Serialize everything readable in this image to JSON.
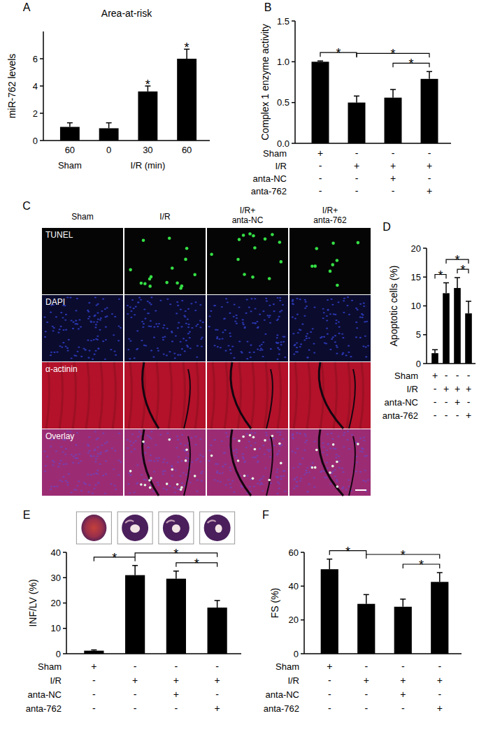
{
  "chart_data": [
    {
      "type": "bar",
      "panel": "A",
      "title": "Area-at-risk",
      "y_label": "miR-762 levels",
      "categories": [
        "60",
        "0",
        "30",
        "60"
      ],
      "values": [
        1.0,
        0.9,
        3.6,
        6.0
      ],
      "errors": [
        0.3,
        0.4,
        0.4,
        0.7
      ],
      "color": "#000000",
      "ylim": [
        0,
        8
      ],
      "yticks": [
        0,
        2,
        4,
        6
      ],
      "x_groups": [
        {
          "label": "Sham",
          "start": 0,
          "end": 0
        },
        {
          "label": "I/R (min)",
          "start": 1,
          "end": 3
        }
      ],
      "annotations": [
        {
          "index": 2,
          "text": "*"
        },
        {
          "index": 3,
          "text": "*"
        }
      ]
    },
    {
      "type": "bar",
      "panel": "B",
      "y_label": "Complex 1 enzyme activity",
      "categories": [
        null,
        null,
        null,
        null
      ],
      "values": [
        1.0,
        0.5,
        0.56,
        0.79
      ],
      "errors": [
        0.01,
        0.08,
        0.1,
        0.09
      ],
      "color": "#000000",
      "ylim": [
        0,
        1.5
      ],
      "yticks": [
        {
          "value": 0,
          "label": "0.0"
        },
        0.5,
        {
          "value": 1,
          "label": "1.0"
        },
        1.5
      ],
      "conditions": [
        {
          "name": "Sham",
          "signs": [
            "+",
            "-",
            "-",
            "-"
          ]
        },
        {
          "name": "I/R",
          "signs": [
            "-",
            "+",
            "+",
            "+"
          ]
        },
        {
          "name": "anta-NC",
          "signs": [
            "-",
            "-",
            "+",
            "-"
          ]
        },
        {
          "name": "anta-762",
          "signs": [
            "-",
            "-",
            "-",
            "+"
          ]
        }
      ],
      "significance": [
        {
          "from": 0,
          "to": 1,
          "label": "*"
        },
        {
          "from": 1,
          "to": 3,
          "label": "*"
        },
        {
          "from": 2,
          "to": 3,
          "label": "*"
        }
      ]
    },
    {
      "type": "bar",
      "panel": "D",
      "y_label": "Apoptotic cells (%)",
      "categories": [
        null,
        null,
        null,
        null
      ],
      "values": [
        1.8,
        12.2,
        13.1,
        8.7
      ],
      "errors": [
        0.6,
        1.8,
        1.8,
        2.1
      ],
      "color": "#000000",
      "ylim": [
        0,
        20
      ],
      "yticks": [
        0,
        5,
        10,
        15,
        20
      ],
      "conditions": [
        {
          "name": "Sham",
          "signs": [
            "+",
            "-",
            "-",
            "-"
          ]
        },
        {
          "name": "I/R",
          "signs": [
            "-",
            "+",
            "+",
            "+"
          ]
        },
        {
          "name": "anta-NC",
          "signs": [
            "-",
            "-",
            "+",
            "-"
          ]
        },
        {
          "name": "anta-762",
          "signs": [
            "-",
            "-",
            "-",
            "+"
          ]
        }
      ],
      "significance": [
        {
          "from": 0,
          "to": 1,
          "label": "*"
        },
        {
          "from": 1,
          "to": 3,
          "label": "*"
        },
        {
          "from": 2,
          "to": 3,
          "label": "*"
        }
      ]
    },
    {
      "type": "bar",
      "panel": "E",
      "y_label": "INF/LV (%)",
      "categories": [
        null,
        null,
        null,
        null
      ],
      "values": [
        1.2,
        31.0,
        29.6,
        18.2
      ],
      "errors": [
        0.3,
        3.8,
        3.0,
        2.8
      ],
      "color": "#000000",
      "ylim": [
        0,
        40
      ],
      "yticks": [
        0,
        10,
        20,
        30,
        40
      ],
      "conditions": [
        {
          "name": "Sham",
          "signs": [
            "+",
            "-",
            "-",
            "-"
          ]
        },
        {
          "name": "I/R",
          "signs": [
            "-",
            "+",
            "+",
            "+"
          ]
        },
        {
          "name": "anta-NC",
          "signs": [
            "-",
            "-",
            "+",
            "-"
          ]
        },
        {
          "name": "anta-762",
          "signs": [
            "-",
            "-",
            "-",
            "+"
          ]
        }
      ],
      "significance": [
        {
          "from": 0,
          "to": 1,
          "label": "*"
        },
        {
          "from": 1,
          "to": 3,
          "label": "*"
        },
        {
          "from": 2,
          "to": 3,
          "label": "*"
        }
      ]
    },
    {
      "type": "bar",
      "panel": "F",
      "y_label": "FS (%)",
      "categories": [
        null,
        null,
        null,
        null
      ],
      "values": [
        50.0,
        29.5,
        27.8,
        42.5
      ],
      "errors": [
        6.0,
        5.5,
        4.5,
        5.5
      ],
      "color": "#000000",
      "ylim": [
        0,
        60
      ],
      "yticks": [
        0,
        20,
        40,
        60
      ],
      "conditions": [
        {
          "name": "Sham",
          "signs": [
            "+",
            "-",
            "-",
            "-"
          ]
        },
        {
          "name": "I/R",
          "signs": [
            "-",
            "+",
            "+",
            "+"
          ]
        },
        {
          "name": "anta-NC",
          "signs": [
            "-",
            "-",
            "+",
            "-"
          ]
        },
        {
          "name": "anta-762",
          "signs": [
            "-",
            "-",
            "-",
            "+"
          ]
        }
      ],
      "significance": [
        {
          "from": 0,
          "to": 1,
          "label": "*"
        },
        {
          "from": 1,
          "to": 3,
          "label": "*"
        },
        {
          "from": 2,
          "to": 3,
          "label": "*"
        }
      ]
    }
  ],
  "image_panel": {
    "panel": "C",
    "columns": [
      [
        "Sham"
      ],
      [
        "I/R"
      ],
      [
        "I/R+",
        "anta-NC"
      ],
      [
        "I/R+",
        "anta-762"
      ]
    ],
    "rows": [
      "TUNEL",
      "DAPI",
      "α-actinin",
      "Overlay"
    ]
  }
}
